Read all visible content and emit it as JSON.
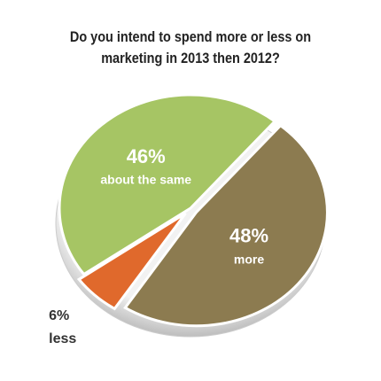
{
  "chart_data": {
    "type": "pie",
    "title": "Do you intend to spend more or less on marketing in 2013 then 2012?",
    "categories": [
      "about the same",
      "more",
      "less"
    ],
    "values": [
      46,
      48,
      6
    ],
    "value_labels": [
      "46%",
      "48%",
      "6%"
    ],
    "colors": [
      "#a6c564",
      "#8c7b50",
      "#e0692c"
    ]
  }
}
